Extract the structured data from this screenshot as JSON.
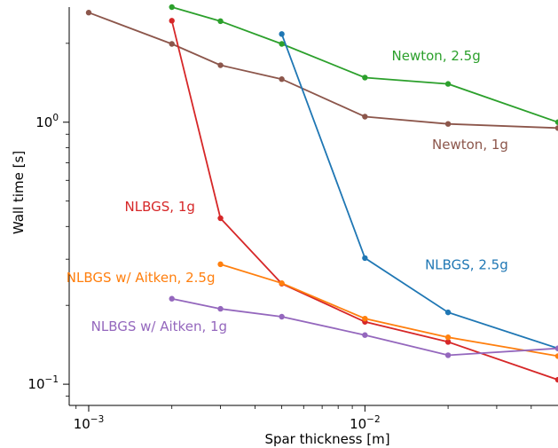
{
  "chart_data": {
    "type": "line",
    "xlabel": "Spar thickness [m]",
    "ylabel": "Wall time [s]",
    "xscale": "log",
    "yscale": "log",
    "xlim": [
      0.00085,
      0.05
    ],
    "ylim": [
      0.083,
      2.75
    ],
    "grid": false,
    "x_ticks": [
      {
        "value": 0.001,
        "base": "10",
        "exp": "−3"
      },
      {
        "value": 0.01,
        "base": "10",
        "exp": "−2"
      }
    ],
    "y_ticks": [
      {
        "value": 0.1,
        "base": "10",
        "exp": "−1"
      },
      {
        "value": 1,
        "base": "10",
        "exp": "0"
      }
    ],
    "series": [
      {
        "name": "Newton, 2.5g",
        "color": "#2ca02c",
        "x": [
          0.002,
          0.003,
          0.005,
          0.01,
          0.02,
          0.05
        ],
        "y": [
          2.75,
          2.43,
          1.99,
          1.48,
          1.4,
          1.0
        ],
        "label_anchor": {
          "x": 0.0125,
          "y": 1.72
        }
      },
      {
        "name": "Newton, 1g",
        "color": "#8c564b",
        "x": [
          0.001,
          0.002,
          0.003,
          0.005,
          0.01,
          0.02,
          0.05
        ],
        "y": [
          2.62,
          1.99,
          1.65,
          1.46,
          1.05,
          0.985,
          0.95
        ],
        "label_anchor": {
          "x": 0.0175,
          "y": 0.79
        }
      },
      {
        "name": "NLBGS, 2.5g",
        "color": "#1f77b4",
        "x": [
          0.005,
          0.01,
          0.02,
          0.05
        ],
        "y": [
          2.17,
          0.303,
          0.188,
          0.137
        ],
        "label_anchor": {
          "x": 0.0165,
          "y": 0.275
        }
      },
      {
        "name": "NLBGS, 1g",
        "color": "#d62728",
        "x": [
          0.002,
          0.003,
          0.005,
          0.01,
          0.02,
          0.05
        ],
        "y": [
          2.44,
          0.43,
          0.242,
          0.173,
          0.145,
          0.104
        ],
        "label_anchor": {
          "x": 0.00135,
          "y": 0.457
        }
      },
      {
        "name": "NLBGS w/ Aitken, 2.5g",
        "color": "#ff7f0e",
        "x": [
          0.003,
          0.005,
          0.01,
          0.02,
          0.05
        ],
        "y": [
          0.287,
          0.243,
          0.178,
          0.151,
          0.128
        ],
        "label_anchor": {
          "x": 0.00083,
          "y": 0.245
        }
      },
      {
        "name": "NLBGS w/ Aitken, 1g",
        "color": "#9467bd",
        "x": [
          0.002,
          0.003,
          0.005,
          0.01,
          0.02,
          0.05
        ],
        "y": [
          0.212,
          0.194,
          0.181,
          0.154,
          0.129,
          0.137
        ],
        "label_anchor": {
          "x": 0.00102,
          "y": 0.16
        }
      }
    ]
  }
}
